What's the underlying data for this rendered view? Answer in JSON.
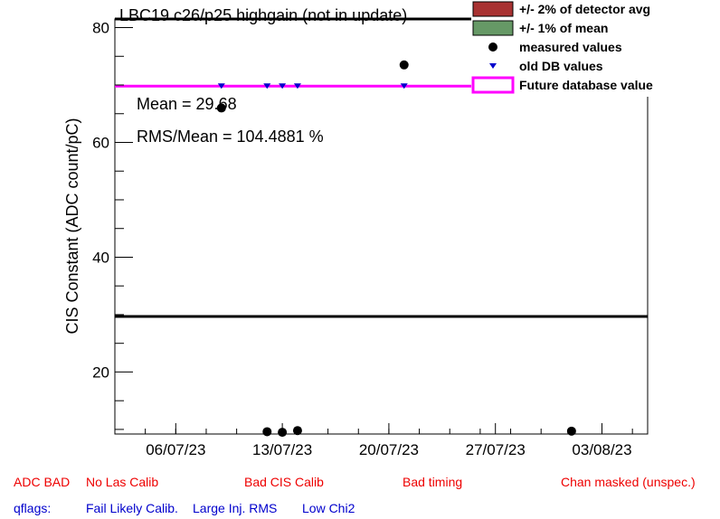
{
  "chart_data": {
    "type": "scatter",
    "title": "LBC19 c26/p25 highgain (not in update)",
    "ylabel": "CIS Constant (ADC count/pC)",
    "xlabel": "",
    "x_ticks": [
      "06/07/23",
      "13/07/23",
      "20/07/23",
      "27/07/23",
      "03/08/23"
    ],
    "y_ticks": [
      20,
      40,
      60,
      80
    ],
    "xlim": [
      "2023-07-02",
      "2023-08-06"
    ],
    "ylim": [
      9.2,
      81.5
    ],
    "grid": false,
    "legend_position": "top-right",
    "legend": [
      {
        "label": "+/- 2% of detector avg",
        "style": "box",
        "color": "#a83232"
      },
      {
        "label": "+/- 1% of mean",
        "style": "box",
        "color": "#669966"
      },
      {
        "label": "measured values",
        "style": "dot",
        "color": "#000000"
      },
      {
        "label": "old DB values",
        "style": "triangle",
        "color": "#0000cc"
      },
      {
        "label": "Future database value",
        "style": "line",
        "color": "#ff00ff"
      }
    ],
    "series": [
      {
        "name": "measured values",
        "color": "#000000",
        "points": [
          {
            "x": "2023-07-09",
            "y": 66.0
          },
          {
            "x": "2023-07-12",
            "y": 9.6
          },
          {
            "x": "2023-07-13",
            "y": 9.5
          },
          {
            "x": "2023-07-14",
            "y": 9.8
          },
          {
            "x": "2023-07-21",
            "y": 73.5
          },
          {
            "x": "2023-08-01",
            "y": 9.7
          }
        ]
      },
      {
        "name": "old DB values",
        "color": "#0000cc",
        "points": [
          {
            "x": "2023-07-09",
            "y": 69.8
          },
          {
            "x": "2023-07-12",
            "y": 69.8
          },
          {
            "x": "2023-07-13",
            "y": 69.8
          },
          {
            "x": "2023-07-14",
            "y": 69.8
          },
          {
            "x": "2023-07-21",
            "y": 69.8
          }
        ]
      }
    ],
    "reference_lines": [
      {
        "y": 29.68,
        "color": "#000000"
      },
      {
        "y": 69.8,
        "color": "#ff00ff"
      },
      {
        "y": 81.5,
        "color": "#000000"
      }
    ],
    "annotations": [
      "Mean = 29.68",
      "RMS/Mean = 104.4881 %"
    ]
  },
  "footer": {
    "row1": [
      {
        "text": "ADC BAD",
        "color": "#ee0000"
      },
      {
        "text": "No Las Calib",
        "color": "#ee0000"
      },
      {
        "text": "Bad CIS Calib",
        "color": "#ee0000"
      },
      {
        "text": "Bad timing",
        "color": "#ee0000"
      },
      {
        "text": "Chan masked (unspec.)",
        "color": "#ee0000"
      }
    ],
    "row2": [
      {
        "text": "qflags:",
        "color": "#0000cc"
      },
      {
        "text": "Fail Likely Calib.",
        "color": "#0000cc"
      },
      {
        "text": "Large Inj. RMS",
        "color": "#0000cc"
      },
      {
        "text": "Low Chi2",
        "color": "#0000cc"
      }
    ]
  }
}
